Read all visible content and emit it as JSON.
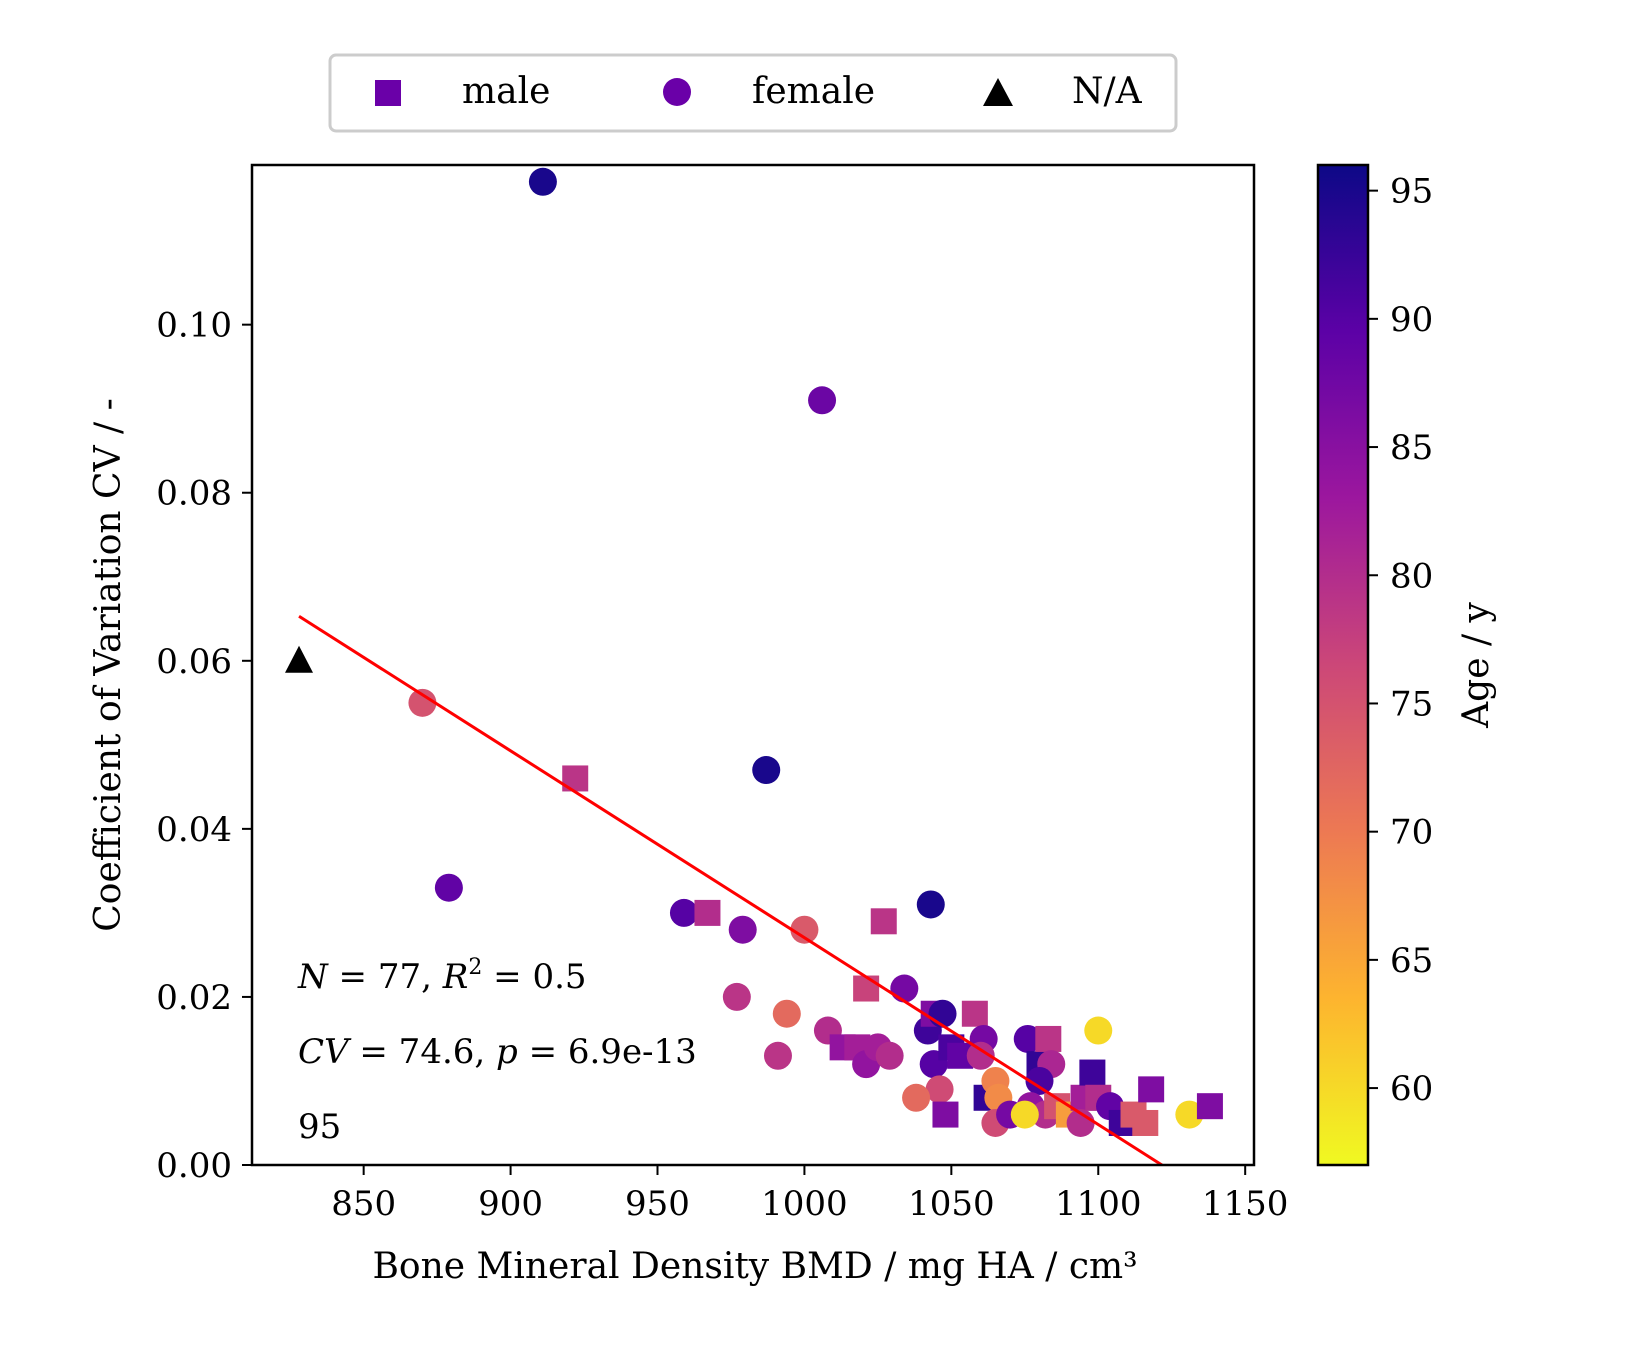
{
  "chart_data": {
    "type": "scatter",
    "xlabel": "Bone Mineral Density BMD / mg HA / cm³",
    "ylabel": "Coefficient of Variation CV / -",
    "xlim": [
      812,
      1153
    ],
    "ylim": [
      0.0,
      0.119
    ],
    "x_ticks": [
      850,
      900,
      950,
      1000,
      1050,
      1100,
      1150
    ],
    "y_ticks": [
      0.0,
      0.02,
      0.04,
      0.06,
      0.08,
      0.1
    ],
    "x_tick_labels": [
      "850",
      "900",
      "950",
      "1000",
      "1050",
      "1100",
      "1150"
    ],
    "y_tick_labels": [
      "0.00",
      "0.02",
      "0.04",
      "0.06",
      "0.08",
      "0.10"
    ],
    "grid": false,
    "legend": {
      "placement": "top-center, outside",
      "entries": [
        {
          "label": "male",
          "marker": "square",
          "color": "#6a00a8"
        },
        {
          "label": "female",
          "marker": "circle",
          "color": "#6a00a8"
        },
        {
          "label": "N/A",
          "marker": "triangle",
          "color": "#000000"
        }
      ]
    },
    "colorbar": {
      "label": "Age / y",
      "range": [
        57,
        96
      ],
      "ticks": [
        60,
        65,
        70,
        75,
        80,
        85,
        90,
        95
      ],
      "tick_labels": [
        "60",
        "65",
        "70",
        "75",
        "80",
        "85",
        "90",
        "95"
      ],
      "colormap": "plasma (reversed)",
      "stops": [
        "#f0f921",
        "#fdb42f",
        "#ed7953",
        "#cc4778",
        "#9c179e",
        "#5c01a6",
        "#0d0887"
      ]
    },
    "fit_line": {
      "color": "#ff0000",
      "x": [
        828,
        1123
      ],
      "y": [
        0.0653,
        -0.0003
      ]
    },
    "annotations": {
      "line1_prefix": "N",
      "line1_mid": " = 77, ",
      "line1_r": "R",
      "line1_sup": "2",
      "line1_tail": " = 0.5",
      "line2_prefix": "CV",
      "line2_mid": " = 74.6, ",
      "line2_p": "p",
      "line2_tail": " = 6.9e-13",
      "line3": "95"
    },
    "points": [
      {
        "x": 911,
        "y": 0.117,
        "age": 95,
        "marker": "circle"
      },
      {
        "x": 1006,
        "y": 0.091,
        "age": 88,
        "marker": "circle"
      },
      {
        "x": 987,
        "y": 0.047,
        "age": 95,
        "marker": "circle"
      },
      {
        "x": 870,
        "y": 0.055,
        "age": 75,
        "marker": "circle"
      },
      {
        "x": 922,
        "y": 0.046,
        "age": 79,
        "marker": "square"
      },
      {
        "x": 879,
        "y": 0.033,
        "age": 89,
        "marker": "circle"
      },
      {
        "x": 1043,
        "y": 0.031,
        "age": 95,
        "marker": "circle"
      },
      {
        "x": 959,
        "y": 0.03,
        "age": 90,
        "marker": "circle"
      },
      {
        "x": 967,
        "y": 0.03,
        "age": 80,
        "marker": "square"
      },
      {
        "x": 979,
        "y": 0.028,
        "age": 86,
        "marker": "circle"
      },
      {
        "x": 1000,
        "y": 0.028,
        "age": 74,
        "marker": "circle"
      },
      {
        "x": 1027,
        "y": 0.029,
        "age": 79,
        "marker": "square"
      },
      {
        "x": 1021,
        "y": 0.021,
        "age": 77,
        "marker": "square"
      },
      {
        "x": 1034,
        "y": 0.021,
        "age": 87,
        "marker": "circle"
      },
      {
        "x": 977,
        "y": 0.02,
        "age": 79,
        "marker": "circle"
      },
      {
        "x": 994,
        "y": 0.018,
        "age": 72,
        "marker": "circle"
      },
      {
        "x": 1008,
        "y": 0.016,
        "age": 80,
        "marker": "circle"
      },
      {
        "x": 1013,
        "y": 0.014,
        "age": 84,
        "marker": "square"
      },
      {
        "x": 1018,
        "y": 0.014,
        "age": 82,
        "marker": "square"
      },
      {
        "x": 1021,
        "y": 0.012,
        "age": 84,
        "marker": "circle"
      },
      {
        "x": 1025,
        "y": 0.014,
        "age": 82,
        "marker": "circle"
      },
      {
        "x": 1029,
        "y": 0.013,
        "age": 80,
        "marker": "circle"
      },
      {
        "x": 991,
        "y": 0.013,
        "age": 79,
        "marker": "circle"
      },
      {
        "x": 1042,
        "y": 0.016,
        "age": 92,
        "marker": "circle"
      },
      {
        "x": 1044,
        "y": 0.018,
        "age": 86,
        "marker": "square"
      },
      {
        "x": 1047,
        "y": 0.018,
        "age": 93,
        "marker": "circle"
      },
      {
        "x": 1044,
        "y": 0.012,
        "age": 90,
        "marker": "circle"
      },
      {
        "x": 1050,
        "y": 0.014,
        "age": 91,
        "marker": "square"
      },
      {
        "x": 1053,
        "y": 0.013,
        "age": 89,
        "marker": "square"
      },
      {
        "x": 1058,
        "y": 0.018,
        "age": 79,
        "marker": "square"
      },
      {
        "x": 1061,
        "y": 0.015,
        "age": 87,
        "marker": "circle"
      },
      {
        "x": 1060,
        "y": 0.013,
        "age": 80,
        "marker": "circle"
      },
      {
        "x": 1046,
        "y": 0.009,
        "age": 76,
        "marker": "circle"
      },
      {
        "x": 1038,
        "y": 0.008,
        "age": 72,
        "marker": "circle"
      },
      {
        "x": 1048,
        "y": 0.006,
        "age": 86,
        "marker": "square"
      },
      {
        "x": 1062,
        "y": 0.008,
        "age": 93,
        "marker": "square"
      },
      {
        "x": 1065,
        "y": 0.01,
        "age": 69,
        "marker": "circle"
      },
      {
        "x": 1066,
        "y": 0.008,
        "age": 68,
        "marker": "circle"
      },
      {
        "x": 1065,
        "y": 0.005,
        "age": 76,
        "marker": "circle"
      },
      {
        "x": 1070,
        "y": 0.006,
        "age": 87,
        "marker": "circle"
      },
      {
        "x": 1076,
        "y": 0.015,
        "age": 90,
        "marker": "circle"
      },
      {
        "x": 1080,
        "y": 0.012,
        "age": 93,
        "marker": "square"
      },
      {
        "x": 1083,
        "y": 0.015,
        "age": 79,
        "marker": "square"
      },
      {
        "x": 1084,
        "y": 0.012,
        "age": 81,
        "marker": "circle"
      },
      {
        "x": 1080,
        "y": 0.01,
        "age": 91,
        "marker": "circle"
      },
      {
        "x": 1077,
        "y": 0.007,
        "age": 84,
        "marker": "circle"
      },
      {
        "x": 1082,
        "y": 0.006,
        "age": 80,
        "marker": "circle"
      },
      {
        "x": 1075,
        "y": 0.006,
        "age": 60,
        "marker": "circle"
      },
      {
        "x": 1086,
        "y": 0.007,
        "age": 75,
        "marker": "square"
      },
      {
        "x": 1090,
        "y": 0.006,
        "age": 66,
        "marker": "square"
      },
      {
        "x": 1095,
        "y": 0.008,
        "age": 82,
        "marker": "square"
      },
      {
        "x": 1098,
        "y": 0.011,
        "age": 92,
        "marker": "square"
      },
      {
        "x": 1100,
        "y": 0.008,
        "age": 80,
        "marker": "square"
      },
      {
        "x": 1094,
        "y": 0.005,
        "age": 80,
        "marker": "circle"
      },
      {
        "x": 1100,
        "y": 0.016,
        "age": 60,
        "marker": "circle"
      },
      {
        "x": 1104,
        "y": 0.007,
        "age": 89,
        "marker": "circle"
      },
      {
        "x": 1108,
        "y": 0.005,
        "age": 92,
        "marker": "square"
      },
      {
        "x": 1112,
        "y": 0.006,
        "age": 74,
        "marker": "square"
      },
      {
        "x": 1116,
        "y": 0.005,
        "age": 74,
        "marker": "square"
      },
      {
        "x": 1118,
        "y": 0.009,
        "age": 86,
        "marker": "square"
      },
      {
        "x": 1131,
        "y": 0.006,
        "age": 60,
        "marker": "circle"
      },
      {
        "x": 1138,
        "y": 0.007,
        "age": 86,
        "marker": "square"
      },
      {
        "x": 828,
        "y": 0.06,
        "age": null,
        "marker": "triangle"
      }
    ]
  }
}
